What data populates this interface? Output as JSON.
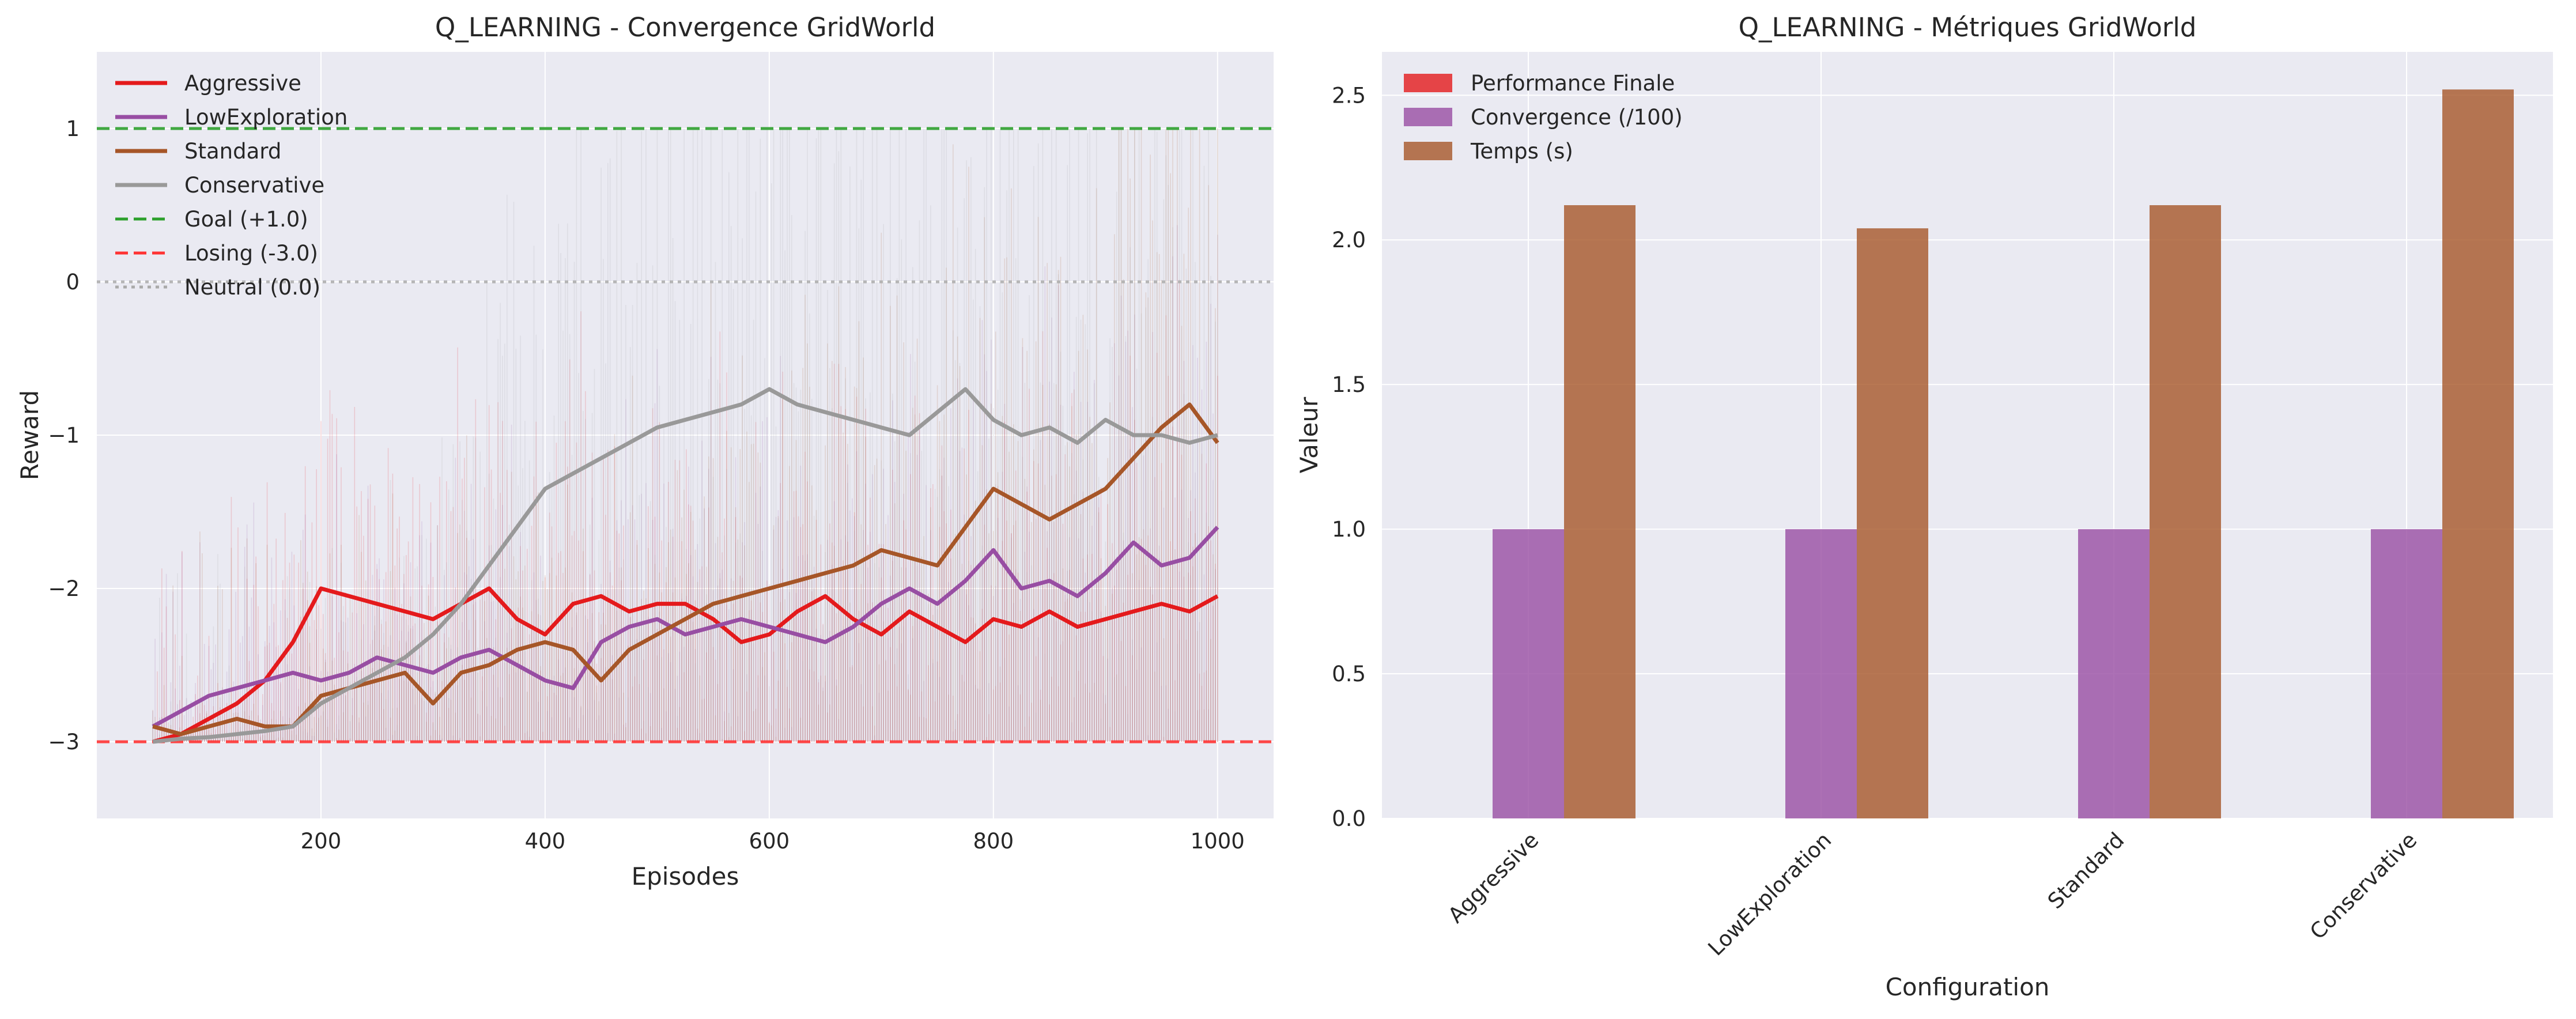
{
  "figure": {
    "background": "#ffffff",
    "axes_bg": "#eaeaf2",
    "grid": "#ffffff"
  },
  "chart_data": [
    {
      "type": "line",
      "title": "Q_LEARNING - Convergence GridWorld",
      "xlabel": "Episodes",
      "ylabel": "Reward",
      "xlim": [
        0,
        1050
      ],
      "ylim": [
        -3.5,
        1.5
      ],
      "xticks": [
        200,
        400,
        600,
        800,
        1000
      ],
      "xtick_labels": [
        "200",
        "400",
        "600",
        "800",
        "1000"
      ],
      "yticks": [
        -3,
        -2,
        -1,
        0,
        1
      ],
      "ytick_labels": [
        "−3",
        "−2",
        "−1",
        "0",
        "1"
      ],
      "grid": true,
      "legend_position": "upper-left",
      "series": [
        {
          "name": "Aggressive",
          "color": "#e41a1c",
          "x": [
            50,
            75,
            100,
            125,
            150,
            175,
            200,
            225,
            250,
            275,
            300,
            325,
            350,
            375,
            400,
            425,
            450,
            475,
            500,
            525,
            550,
            575,
            600,
            625,
            650,
            675,
            700,
            725,
            750,
            775,
            800,
            825,
            850,
            875,
            900,
            925,
            950,
            975,
            1000
          ],
          "values": [
            -3.0,
            -2.95,
            -2.85,
            -2.75,
            -2.6,
            -2.35,
            -2.0,
            -2.05,
            -2.1,
            -2.15,
            -2.2,
            -2.1,
            -2.0,
            -2.2,
            -2.3,
            -2.1,
            -2.05,
            -2.15,
            -2.1,
            -2.1,
            -2.2,
            -2.35,
            -2.3,
            -2.15,
            -2.05,
            -2.2,
            -2.3,
            -2.15,
            -2.25,
            -2.35,
            -2.2,
            -2.25,
            -2.15,
            -2.25,
            -2.2,
            -2.15,
            -2.1,
            -2.15,
            -2.05
          ]
        },
        {
          "name": "LowExploration",
          "color": "#984ea3",
          "x": [
            50,
            75,
            100,
            125,
            150,
            175,
            200,
            225,
            250,
            275,
            300,
            325,
            350,
            375,
            400,
            425,
            450,
            475,
            500,
            525,
            550,
            575,
            600,
            625,
            650,
            675,
            700,
            725,
            750,
            775,
            800,
            825,
            850,
            875,
            900,
            925,
            950,
            975,
            1000
          ],
          "values": [
            -2.9,
            -2.8,
            -2.7,
            -2.65,
            -2.6,
            -2.55,
            -2.6,
            -2.55,
            -2.45,
            -2.5,
            -2.55,
            -2.45,
            -2.4,
            -2.5,
            -2.6,
            -2.65,
            -2.35,
            -2.25,
            -2.2,
            -2.3,
            -2.25,
            -2.2,
            -2.25,
            -2.3,
            -2.35,
            -2.25,
            -2.1,
            -2.0,
            -2.1,
            -1.95,
            -1.75,
            -2.0,
            -1.95,
            -2.05,
            -1.9,
            -1.7,
            -1.85,
            -1.8,
            -1.6
          ]
        },
        {
          "name": "Standard",
          "color": "#a65628",
          "x": [
            50,
            75,
            100,
            125,
            150,
            175,
            200,
            225,
            250,
            275,
            300,
            325,
            350,
            375,
            400,
            425,
            450,
            475,
            500,
            525,
            550,
            575,
            600,
            625,
            650,
            675,
            700,
            725,
            750,
            775,
            800,
            825,
            850,
            875,
            900,
            925,
            950,
            975,
            1000
          ],
          "values": [
            -2.9,
            -2.95,
            -2.9,
            -2.85,
            -2.9,
            -2.9,
            -2.7,
            -2.65,
            -2.6,
            -2.55,
            -2.75,
            -2.55,
            -2.5,
            -2.4,
            -2.35,
            -2.4,
            -2.6,
            -2.4,
            -2.3,
            -2.2,
            -2.1,
            -2.05,
            -2.0,
            -1.95,
            -1.9,
            -1.85,
            -1.75,
            -1.8,
            -1.85,
            -1.6,
            -1.35,
            -1.45,
            -1.55,
            -1.45,
            -1.35,
            -1.15,
            -0.95,
            -0.8,
            -1.05
          ]
        },
        {
          "name": "Conservative",
          "color": "#999999",
          "x": [
            50,
            75,
            100,
            125,
            150,
            175,
            200,
            225,
            250,
            275,
            300,
            325,
            350,
            375,
            400,
            425,
            450,
            475,
            500,
            525,
            550,
            575,
            600,
            625,
            650,
            675,
            700,
            725,
            750,
            775,
            800,
            825,
            850,
            875,
            900,
            925,
            950,
            975,
            1000
          ],
          "values": [
            -3.0,
            -2.98,
            -2.97,
            -2.95,
            -2.93,
            -2.9,
            -2.75,
            -2.65,
            -2.55,
            -2.45,
            -2.3,
            -2.1,
            -1.85,
            -1.6,
            -1.35,
            -1.25,
            -1.15,
            -1.05,
            -0.95,
            -0.9,
            -0.85,
            -0.8,
            -0.7,
            -0.8,
            -0.85,
            -0.9,
            -0.95,
            -1.0,
            -0.85,
            -0.7,
            -0.9,
            -1.0,
            -0.95,
            -1.05,
            -0.9,
            -1.0,
            -1.0,
            -1.05,
            -1.0
          ]
        }
      ],
      "reference_lines": [
        {
          "name": "Goal (+1.0)",
          "y": 1.0,
          "color": "#2ca02c",
          "style": "dashed"
        },
        {
          "name": "Losing (-3.0)",
          "y": -3.0,
          "color": "#ff3333",
          "style": "dashed"
        },
        {
          "name": "Neutral (0.0)",
          "y": 0.0,
          "color": "#aaaaaa",
          "style": "dotted"
        }
      ]
    },
    {
      "type": "bar",
      "title": "Q_LEARNING - Métriques GridWorld",
      "xlabel": "Configuration",
      "ylabel": "Valeur",
      "categories": [
        "Aggressive",
        "LowExploration",
        "Standard",
        "Conservative"
      ],
      "ylim": [
        0,
        2.65
      ],
      "yticks": [
        0,
        0.5,
        1.0,
        1.5,
        2.0,
        2.5
      ],
      "ytick_labels": [
        "0.0",
        "0.5",
        "1.0",
        "1.5",
        "2.0",
        "2.5"
      ],
      "grid": true,
      "legend_position": "upper-left",
      "series": [
        {
          "name": "Performance Finale",
          "color": "#e41a1c",
          "values": [
            0,
            0,
            0,
            0
          ]
        },
        {
          "name": "Convergence (/100)",
          "color": "#984ea3",
          "values": [
            1.0,
            1.0,
            1.0,
            1.0
          ]
        },
        {
          "name": "Temps (s)",
          "color": "#a65628",
          "values": [
            2.12,
            2.04,
            2.12,
            2.52
          ]
        }
      ]
    }
  ]
}
